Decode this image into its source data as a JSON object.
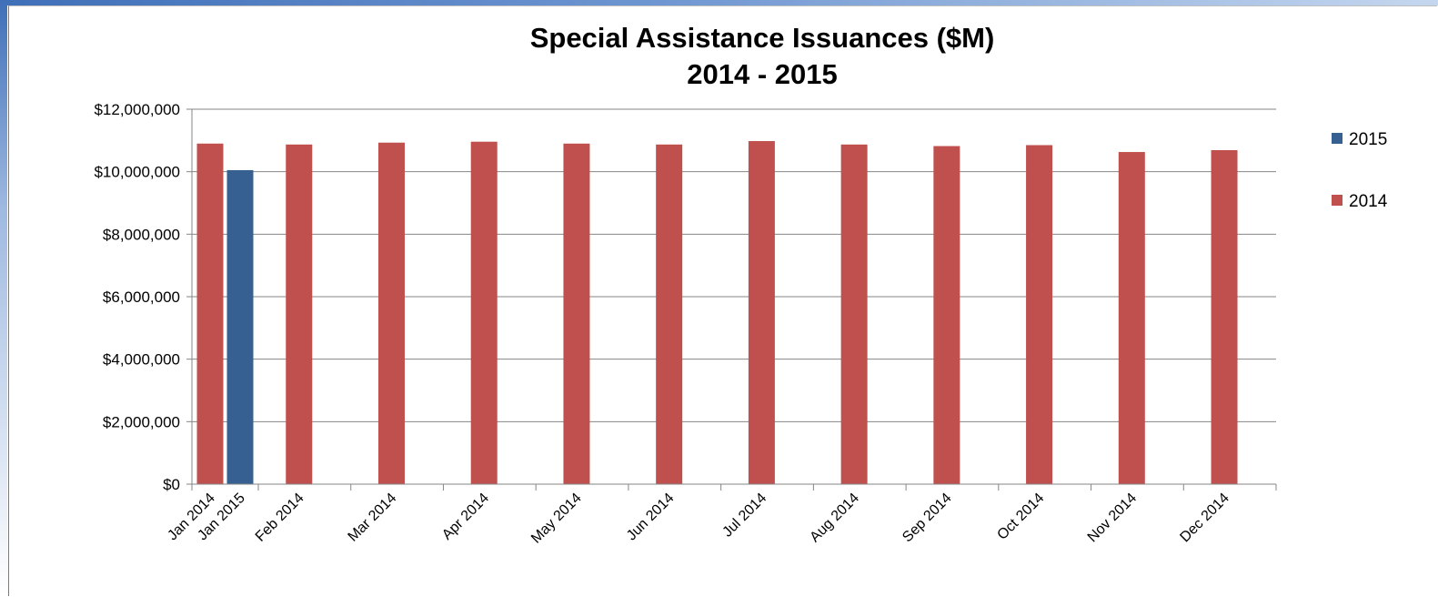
{
  "chart_data": {
    "type": "bar",
    "title": "Special Assistance Issuances ($M)",
    "subtitle": "2014 - 2015",
    "categories": [
      "Jan 2014",
      "Jan 2015",
      "Feb 2014",
      "Mar 2014",
      "Apr 2014",
      "May 2014",
      "Jun 2014",
      "Jul 2014",
      "Aug 2014",
      "Sep 2014",
      "Oct 2014",
      "Nov 2014",
      "Dec 2014"
    ],
    "series": [
      {
        "name": "2015",
        "color": "#376092",
        "points": [
          {
            "category": "Jan 2015",
            "value": 10050000
          }
        ]
      },
      {
        "name": "2014",
        "color": "#c0504d",
        "points": [
          {
            "category": "Jan 2014",
            "value": 10900000
          },
          {
            "category": "Feb 2014",
            "value": 10870000
          },
          {
            "category": "Mar 2014",
            "value": 10930000
          },
          {
            "category": "Apr 2014",
            "value": 10960000
          },
          {
            "category": "May 2014",
            "value": 10900000
          },
          {
            "category": "Jun 2014",
            "value": 10870000
          },
          {
            "category": "Jul 2014",
            "value": 10980000
          },
          {
            "category": "Aug 2014",
            "value": 10870000
          },
          {
            "category": "Sep 2014",
            "value": 10820000
          },
          {
            "category": "Oct 2014",
            "value": 10850000
          },
          {
            "category": "Nov 2014",
            "value": 10630000
          },
          {
            "category": "Dec 2014",
            "value": 10690000
          }
        ]
      }
    ],
    "y_ticks": [
      0,
      2000000,
      4000000,
      6000000,
      8000000,
      10000000,
      12000000
    ],
    "y_tick_labels": [
      "$0",
      "$2,000,000",
      "$4,000,000",
      "$6,000,000",
      "$8,000,000",
      "$10,000,000",
      "$12,000,000"
    ],
    "ylim": [
      0,
      12000000
    ],
    "grid": true,
    "legend_position": "right"
  }
}
